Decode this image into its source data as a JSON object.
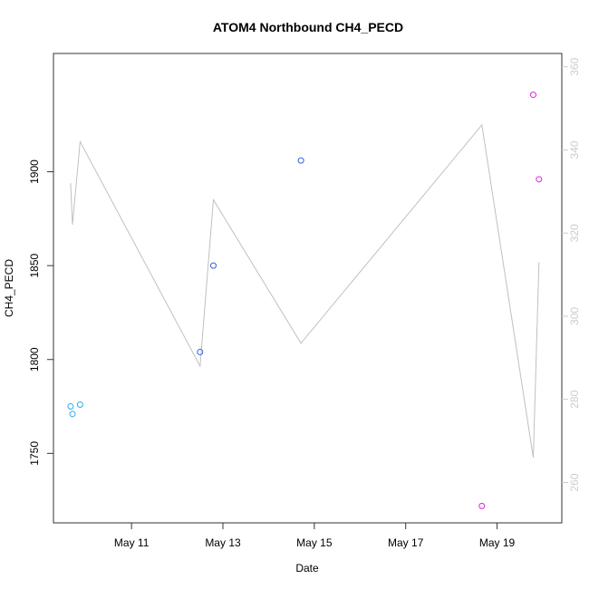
{
  "chart_data": {
    "type": "scatter",
    "title": "ATOM4 Northbound CH4_PECD",
    "xlabel": "Date",
    "ylabel": "CH4_PECD",
    "xlim": [
      "2016-05-09T07:00",
      "2016-05-20T10:00"
    ],
    "ylim": [
      1713,
      1963
    ],
    "y2lim": [
      250.3,
      363.2
    ],
    "x_ticks": [
      {
        "date": "2016-05-11",
        "label": "May 11"
      },
      {
        "date": "2016-05-13",
        "label": "May 13"
      },
      {
        "date": "2016-05-15",
        "label": "May 15"
      },
      {
        "date": "2016-05-17",
        "label": "May 17"
      },
      {
        "date": "2016-05-19",
        "label": "May 19"
      }
    ],
    "y_ticks": [
      1750,
      1800,
      1850,
      1900
    ],
    "y2_ticks": [
      260,
      280,
      300,
      320,
      340,
      360
    ],
    "grid": false,
    "axis_color_right": "#cccccc",
    "series": [
      {
        "color": "#29aee8",
        "marker": "circle",
        "points": [
          {
            "x": "2016-05-09T16:00",
            "y": 1775
          },
          {
            "x": "2016-05-09T17:00",
            "y": 1771
          },
          {
            "x": "2016-05-09T21:00",
            "y": 1776
          }
        ]
      },
      {
        "color": "#2f5fe0",
        "marker": "circle",
        "points": [
          {
            "x": "2016-05-12T12:00",
            "y": 1804
          },
          {
            "x": "2016-05-12T19:00",
            "y": 1850
          },
          {
            "x": "2016-05-14T17:00",
            "y": 1906
          }
        ]
      },
      {
        "color": "#e020e0",
        "marker": "circle",
        "points": [
          {
            "x": "2016-05-18T16:00",
            "y": 1722
          },
          {
            "x": "2016-05-19T19:00",
            "y": 1941
          },
          {
            "x": "2016-05-19T22:00",
            "y": 1896
          }
        ]
      },
      {
        "color": "#c0c0c0",
        "marker": "line",
        "axis": "right",
        "points": [
          {
            "x": "2016-05-09T16:00",
            "y": 332.0
          },
          {
            "x": "2016-05-09T17:00",
            "y": 322.0
          },
          {
            "x": "2016-05-09T21:00",
            "y": 342.0
          },
          {
            "x": "2016-05-12T12:00",
            "y": 288.0
          },
          {
            "x": "2016-05-12T19:00",
            "y": 328.0
          },
          {
            "x": "2016-05-14T17:00",
            "y": 293.5
          },
          {
            "x": "2016-05-18T16:00",
            "y": 346.0
          },
          {
            "x": "2016-05-19T19:00",
            "y": 266.0
          },
          {
            "x": "2016-05-19T22:00",
            "y": 313.0
          }
        ]
      }
    ]
  }
}
